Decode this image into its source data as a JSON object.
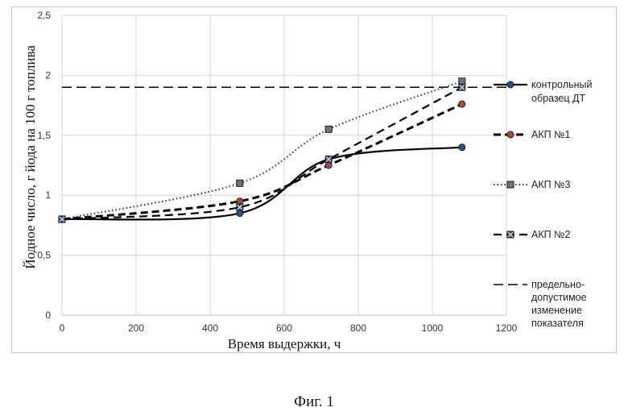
{
  "chart_data": {
    "type": "line",
    "title": "",
    "xlabel": "Время выдержки, ч",
    "ylabel": "Йодное число, г йода на 100 г топлива",
    "xlim": [
      0,
      1200
    ],
    "ylim": [
      0,
      2.5
    ],
    "xticks": [
      "0",
      "200",
      "400",
      "600",
      "800",
      "1000",
      "1200"
    ],
    "yticks": [
      "0",
      "0,5",
      "1",
      "1,5",
      "2",
      "2,5"
    ],
    "grid": true,
    "legend_position": "right",
    "series": [
      {
        "name": "контрольный образец ДТ",
        "x": [
          0,
          480,
          720,
          1080
        ],
        "y": [
          0.8,
          0.85,
          1.3,
          1.4
        ],
        "color": "#000000",
        "marker_color": "#2f4f8f",
        "marker": "circle",
        "line": "solid"
      },
      {
        "name": "АКП №1",
        "x": [
          0,
          480,
          720,
          1080
        ],
        "y": [
          0.8,
          0.95,
          1.25,
          1.76
        ],
        "color": "#000000",
        "marker_color": "#b0473a",
        "marker": "circle",
        "line": "dashed-thick"
      },
      {
        "name": "АКП №3",
        "x": [
          0,
          480,
          720,
          1080
        ],
        "y": [
          0.8,
          1.1,
          1.55,
          1.95
        ],
        "color": "#2a2a6a",
        "marker_color": "#6b7a6e",
        "marker": "square",
        "line": "dotted"
      },
      {
        "name": "АКП №2",
        "x": [
          0,
          480,
          720,
          1080
        ],
        "y": [
          0.8,
          0.9,
          1.3,
          1.9
        ],
        "color": "#000000",
        "marker_color": "#3b4a6b",
        "marker": "x-square",
        "line": "dashed"
      },
      {
        "name": "предельно-допустимое изменение показателя",
        "name_lines": [
          "предельно-",
          "допустимое",
          "изменение",
          "показателя"
        ],
        "x": [
          0,
          1200
        ],
        "y": [
          1.9,
          1.9
        ],
        "color": "#000000",
        "line": "long-dash"
      }
    ]
  },
  "caption": "Фиг. 1"
}
